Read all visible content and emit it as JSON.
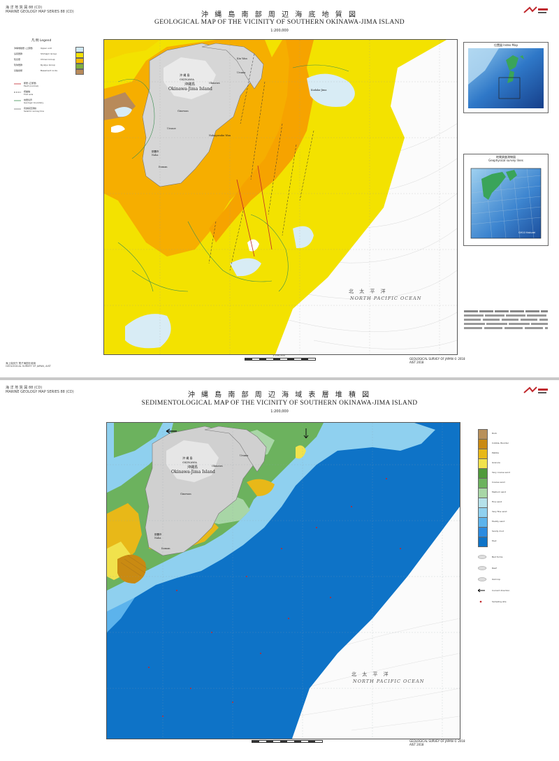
{
  "sheet1": {
    "series_lines": [
      "海 洋 地 質 図 88 (CD)",
      "MARINE GEOLOGY MAP SERIES 88 (CD)"
    ],
    "title_jp": "沖 縄 島 南 部 周 辺 海 底 地 質 図",
    "title_en": "GEOLOGICAL MAP OF THE VICINITY OF SOUTHERN OKINAWA-JIMA ISLAND",
    "scale": "1:200,000",
    "legend_heading": "凡 例  Legend",
    "legend_items": [
      {
        "jp": "沖縄堆積層 (上部層)",
        "en": "Upper unit",
        "color": "#cfe8f2"
      },
      {
        "jp": "島尻層群",
        "en": "Shimajiri Group",
        "color": "#f3e200"
      },
      {
        "jp": "知念層",
        "en": "Chinen Group",
        "color": "#f7b900"
      },
      {
        "jp": "琉球層群",
        "en": "Ryukyu Group",
        "color": "#7fb040"
      },
      {
        "jp": "基盤岩類",
        "en": "Basement rocks",
        "color": "#b88a5a"
      }
    ],
    "legend_symbols": [
      {
        "jp": "断層 (正断層)",
        "en": "Fault (normal)"
      },
      {
        "jp": "褶曲軸",
        "en": "Fold axis"
      },
      {
        "jp": "地層境界",
        "en": "Geologic boundary"
      },
      {
        "jp": "音波探査測線",
        "en": "Seismic survey line"
      }
    ],
    "place_labels": {
      "okinawa_jp": "沖 縄 島",
      "okinawa_en": "OKINAWA",
      "island_jp": "沖縄島",
      "island_en": "Okinawa-Jima Island",
      "naha_jp": "那覇市",
      "naha_en": "Naha",
      "itoman": "Itoman",
      "urasoe": "Urasoe",
      "ginowan": "Ginowan",
      "okinawa_city": "Okinawa",
      "uruma": "Uruma",
      "nakagusuku": "Nakagusuku Wan",
      "kin_wan": "Kin Wan",
      "kudaka": "Kudaka-Jima"
    },
    "ocean_jp": "北 太 平 洋",
    "ocean_en": "NORTH PACIFIC OCEAN",
    "index_map_title": "位置図  Index Map",
    "survey_map_title": "地質調査測線図",
    "survey_map_subtitle": "Geophysical survey lines",
    "survey_ship": "GH10 Hakurei",
    "footer_left": [
      "海上保安庁 電子海図を使用",
      "GEOLOGICAL SURVEY OF JAPAN, AIST"
    ],
    "footer_center": "1:200,000",
    "footer_right": [
      "GEOLOGICAL SURVEY OF JAPAN © 2018",
      "AIST 2018"
    ]
  },
  "sheet2": {
    "series_lines": [
      "海 洋 地 質 図 88 (CD)",
      "MARINE GEOLOGY MAP SERIES 88 (CD)"
    ],
    "title_jp": "沖 縄 島 南 部 周 辺 海 域 表 層 堆 積 図",
    "title_en": "SEDIMENTOLOGICAL MAP OF THE VICINITY OF SOUTHERN OKINAWA-JIMA ISLAND",
    "scale": "1:200,000",
    "legend_items": [
      {
        "label": "Mud",
        "color": "#0e73c7"
      },
      {
        "label": "Sandy mud",
        "color": "#2b8be0"
      },
      {
        "label": "Muddy sand",
        "color": "#5cb3ec"
      },
      {
        "label": "Very fine sand",
        "color": "#8fd0ef"
      },
      {
        "label": "Fine sand",
        "color": "#b5e1ea"
      },
      {
        "label": "Medium sand",
        "color": "#a8d6a6"
      },
      {
        "label": "Coarse sand",
        "color": "#6cb25e"
      },
      {
        "label": "Very coarse sand",
        "color": "#4f9a3a"
      },
      {
        "label": "Granule",
        "color": "#f1e24c"
      },
      {
        "label": "Pebble",
        "color": "#e8b818"
      },
      {
        "label": "Cobble, Boulder",
        "color": "#c98a12"
      },
      {
        "label": "Rock",
        "color": "#b8905a"
      }
    ],
    "legend_symbols": [
      {
        "label": "Bed forms"
      },
      {
        "label": "Reef"
      },
      {
        "label": "Outcrop"
      },
      {
        "label": "Current direction"
      },
      {
        "label": "Sampling site"
      }
    ],
    "place_labels": {
      "okinawa_jp": "沖 縄 島",
      "okinawa_en": "OKINAWA",
      "island_jp": "沖縄島",
      "island_en": "Okinawa-Jima Island",
      "naha_jp": "那覇市",
      "naha_en": "Naha",
      "itoman": "Itoman",
      "ginowan": "Ginowan",
      "okinawa_city": "Okinawa",
      "uruma": "Uruma"
    },
    "ocean_jp": "北 太 平 洋",
    "ocean_en": "NORTH PACIFIC OCEAN",
    "footer_right": [
      "GEOLOGICAL SURVEY OF JAPAN © 2018",
      "AIST 2018"
    ]
  }
}
